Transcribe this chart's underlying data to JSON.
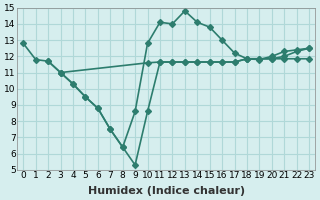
{
  "line1_x": [
    0,
    1,
    2,
    3,
    4,
    5,
    6,
    7,
    8,
    9,
    10,
    11,
    12,
    13,
    14,
    15,
    16,
    17,
    18,
    19,
    20,
    21,
    22,
    23
  ],
  "line1_y": [
    12.8,
    11.8,
    11.7,
    11.0,
    10.3,
    9.5,
    8.8,
    7.5,
    6.4,
    8.6,
    12.8,
    14.1,
    14.0,
    14.8,
    14.1,
    13.8,
    13.0,
    12.2,
    11.85,
    11.8,
    12.0,
    12.3,
    12.4,
    12.5
  ],
  "line2_x": [
    2,
    3,
    10,
    11,
    12,
    13,
    14,
    15,
    16,
    17,
    18,
    19,
    20,
    21,
    22,
    23
  ],
  "line2_y": [
    11.7,
    11.0,
    11.6,
    11.65,
    11.65,
    11.65,
    11.65,
    11.65,
    11.65,
    11.65,
    11.85,
    11.85,
    11.85,
    11.85,
    11.85,
    11.85
  ],
  "line3_x": [
    3,
    4,
    5,
    6,
    7,
    8,
    9,
    10,
    11,
    12,
    13,
    14,
    15,
    16,
    17,
    18,
    19,
    20,
    21,
    22,
    23
  ],
  "line3_y": [
    11.0,
    10.3,
    9.5,
    8.8,
    7.5,
    6.4,
    5.3,
    8.6,
    11.65,
    11.65,
    11.65,
    11.65,
    11.65,
    11.65,
    11.65,
    11.85,
    11.85,
    11.85,
    12.0,
    12.3,
    12.5
  ],
  "color": "#2d7d6e",
  "bg_color": "#d6eeee",
  "grid_color": "#b0d8d8",
  "xlabel": "Humidex (Indice chaleur)",
  "ylim": [
    5,
    15
  ],
  "xlim": [
    0,
    23
  ],
  "yticks": [
    5,
    6,
    7,
    8,
    9,
    10,
    11,
    12,
    13,
    14,
    15
  ],
  "xticks": [
    0,
    1,
    2,
    3,
    4,
    5,
    6,
    7,
    8,
    9,
    10,
    11,
    12,
    13,
    14,
    15,
    16,
    17,
    18,
    19,
    20,
    21,
    22,
    23
  ],
  "xtick_labels": [
    "0",
    "1",
    "2",
    "3",
    "4",
    "5",
    "6",
    "7",
    "8",
    "9",
    "10",
    "11",
    "12",
    "13",
    "14",
    "15",
    "16",
    "17",
    "18",
    "19",
    "20",
    "21",
    "22",
    "23"
  ],
  "marker": "D",
  "markersize": 3,
  "linewidth": 1.2,
  "xlabel_fontsize": 8,
  "tick_fontsize": 6.5
}
